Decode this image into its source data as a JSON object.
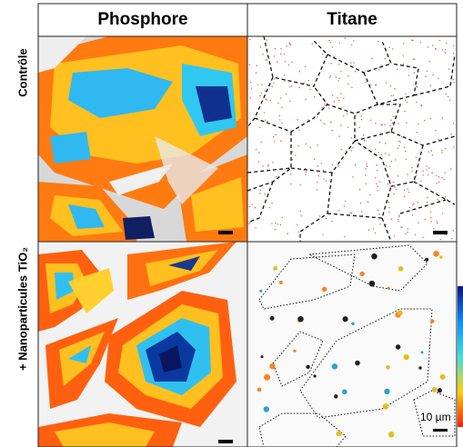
{
  "columns": [
    "Phosphore",
    "Titane"
  ],
  "rows": [
    "Contrôle",
    "+ Nanoparticules TiO₂"
  ],
  "scale_bar_label": "10 µm"
}
